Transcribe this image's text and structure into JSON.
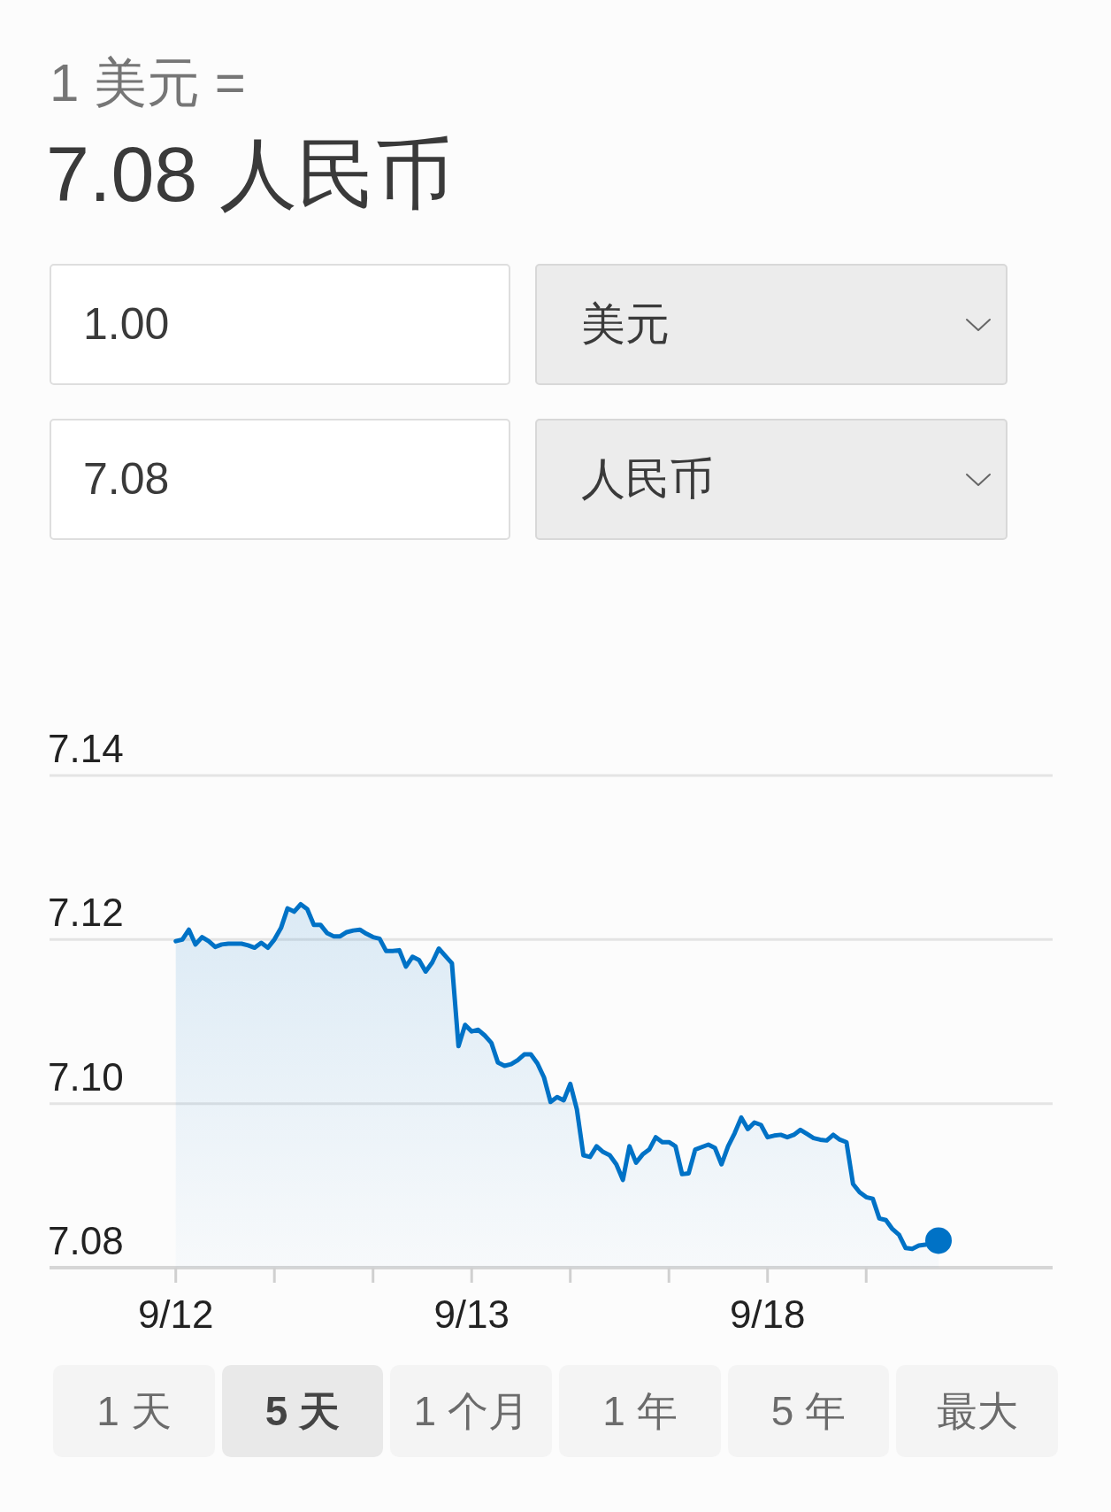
{
  "chart_data": [
    {
      "type": "other",
      "title": "1 美元 =",
      "subtitle": "7.08 人民币",
      "annotations": [
        "1.00",
        "美元",
        "7.08",
        "人民币"
      ]
    },
    {
      "type": "area",
      "categories": [
        "9/12",
        null,
        null,
        null,
        null,
        null,
        null,
        null,
        null,
        null,
        null,
        null,
        null,
        null,
        null,
        null,
        null,
        null,
        null,
        null,
        null,
        null,
        null,
        null,
        null,
        null,
        null,
        null,
        null,
        null,
        null,
        null,
        null,
        null,
        null,
        null,
        null,
        null,
        null,
        null,
        null,
        null,
        null,
        null,
        null,
        "9/13",
        null,
        null,
        null,
        null,
        null,
        null,
        null,
        null,
        null,
        null,
        null,
        null,
        null,
        null,
        null,
        null,
        null,
        null,
        null,
        null,
        null,
        null,
        null,
        null,
        null,
        null,
        null,
        null,
        null,
        null,
        null,
        null,
        null,
        null,
        null,
        null,
        null,
        null,
        null,
        null,
        null,
        null,
        null,
        null,
        "9/18",
        null,
        null,
        null,
        null,
        null,
        null,
        null,
        null,
        null,
        null,
        null,
        null,
        null,
        null,
        null,
        null,
        null,
        null,
        null,
        null,
        null,
        null,
        null,
        null,
        null,
        null
      ],
      "ylim": [
        7.08,
        7.14
      ],
      "yticks": [
        7.08,
        {
          "value": 7.1,
          "label": "7.10"
        },
        7.12,
        7.14
      ],
      "grid": "y",
      "series": [
        {
          "color": "#0072c6",
          "values": [
            7.1198,
            7.12,
            7.1212,
            7.1194,
            7.1203,
            7.1198,
            7.1191,
            7.1194,
            7.1195,
            7.1195,
            7.1195,
            7.1193,
            7.119,
            7.1196,
            7.119,
            7.12,
            7.1214,
            7.1238,
            7.1234,
            7.1243,
            7.1237,
            7.1218,
            7.1218,
            7.1208,
            7.1204,
            7.1204,
            7.1209,
            7.1211,
            7.1212,
            7.1207,
            7.1203,
            7.1201,
            7.1186,
            7.1186,
            7.1187,
            7.1167,
            7.1179,
            7.1175,
            7.1161,
            7.1172,
            7.1189,
            7.118,
            7.1171,
            7.107,
            7.1096,
            7.1088,
            7.109,
            7.1083,
            7.1074,
            7.105,
            7.1046,
            7.1048,
            7.1053,
            7.106,
            7.106,
            7.1049,
            7.1032,
            7.1002,
            7.1008,
            7.1004,
            7.1024,
            7.0993,
            7.0937,
            7.0935,
            7.0948,
            7.0941,
            7.0937,
            7.0926,
            7.0907,
            7.0948,
            7.0928,
            7.0938,
            7.0944,
            7.0959,
            7.0953,
            7.0953,
            7.0948,
            7.0914,
            7.0915,
            7.0944,
            7.0947,
            7.095,
            7.0946,
            7.0926,
            7.0948,
            7.0964,
            7.0983,
            7.0969,
            7.0977,
            7.0974,
            7.0959,
            7.0961,
            7.0962,
            7.0959,
            7.0962,
            7.0968,
            7.0963,
            7.0958,
            7.0956,
            7.0955,
            7.0962,
            7.0956,
            7.0953,
            7.0902,
            7.0892,
            7.0886,
            7.0884,
            7.086,
            7.0858,
            7.0847,
            7.084,
            7.0824,
            7.0823,
            7.0827,
            7.0828,
            7.083,
            7.0833
          ]
        },
        {
          "type": "scatter",
          "color": "#0072c6",
          "values": [
            null,
            null,
            null,
            null,
            null,
            null,
            null,
            null,
            null,
            null,
            null,
            null,
            null,
            null,
            null,
            null,
            null,
            null,
            null,
            null,
            null,
            null,
            null,
            null,
            null,
            null,
            null,
            null,
            null,
            null,
            null,
            null,
            null,
            null,
            null,
            null,
            null,
            null,
            null,
            null,
            null,
            null,
            null,
            null,
            null,
            null,
            null,
            null,
            null,
            null,
            null,
            null,
            null,
            null,
            null,
            null,
            null,
            null,
            null,
            null,
            null,
            null,
            null,
            null,
            null,
            null,
            null,
            null,
            null,
            null,
            null,
            null,
            null,
            null,
            null,
            null,
            null,
            null,
            null,
            null,
            null,
            null,
            null,
            null,
            null,
            null,
            null,
            null,
            null,
            null,
            null,
            null,
            null,
            null,
            null,
            null,
            null,
            null,
            null,
            null,
            null,
            null,
            null,
            null,
            null,
            null,
            null,
            null,
            null,
            null,
            null,
            null,
            null,
            null,
            null,
            null,
            7.0833
          ]
        }
      ]
    },
    {
      "type": "other",
      "annotations": [
        "1 天",
        "5 天",
        "1 个月",
        "1 年",
        "5 年",
        "最大"
      ]
    }
  ]
}
